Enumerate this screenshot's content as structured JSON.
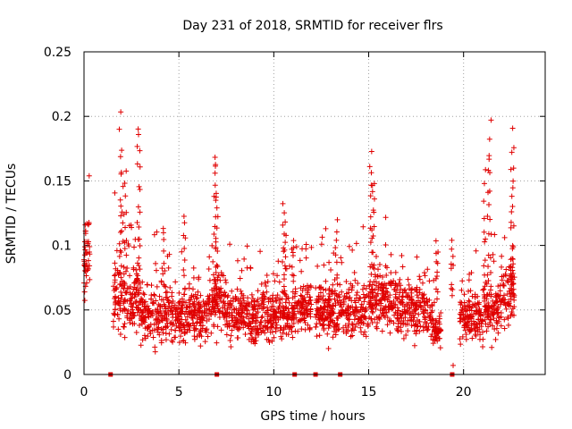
{
  "chart_data": {
    "type": "scatter",
    "title": "Day 231 of 2018, SRMTID for receiver flrs",
    "xlabel": "GPS time / hours",
    "ylabel": "SRMTID / TECUs",
    "xlim": [
      0,
      24.3
    ],
    "ylim": [
      0,
      0.25
    ],
    "x_ticks": [
      0,
      5,
      10,
      15,
      20
    ],
    "x_tick_labels": [
      "0",
      "5",
      "10",
      "15",
      "20"
    ],
    "y_ticks": [
      0,
      0.05,
      0.1,
      0.15,
      0.2,
      0.25
    ],
    "y_tick_labels": [
      "0",
      "0.05",
      "0.1",
      "0.15",
      "0.2",
      "0.25"
    ],
    "grid": true,
    "marker": "+",
    "color": "#e00000",
    "series": [
      {
        "name": "SRMTID",
        "baseline_windows": [
          {
            "x_start": 0.0,
            "x_end": 0.3,
            "level": 0.09,
            "spread": 0.018
          },
          {
            "x_start": 1.5,
            "x_end": 3.0,
            "level": 0.06,
            "spread": 0.02
          },
          {
            "x_start": 3.0,
            "x_end": 6.5,
            "level": 0.045,
            "spread": 0.014
          },
          {
            "x_start": 6.5,
            "x_end": 7.5,
            "level": 0.055,
            "spread": 0.015
          },
          {
            "x_start": 7.5,
            "x_end": 11.0,
            "level": 0.045,
            "spread": 0.014
          },
          {
            "x_start": 11.0,
            "x_end": 12.0,
            "level": 0.052,
            "spread": 0.013
          },
          {
            "x_start": 12.2,
            "x_end": 15.0,
            "level": 0.05,
            "spread": 0.015
          },
          {
            "x_start": 15.0,
            "x_end": 16.5,
            "level": 0.06,
            "spread": 0.016
          },
          {
            "x_start": 16.5,
            "x_end": 18.2,
            "level": 0.05,
            "spread": 0.015
          },
          {
            "x_start": 18.2,
            "x_end": 18.8,
            "level": 0.035,
            "spread": 0.012
          },
          {
            "x_start": 19.8,
            "x_end": 21.0,
            "level": 0.045,
            "spread": 0.012
          },
          {
            "x_start": 21.0,
            "x_end": 22.0,
            "level": 0.05,
            "spread": 0.015
          },
          {
            "x_start": 22.0,
            "x_end": 22.7,
            "level": 0.065,
            "spread": 0.02
          }
        ],
        "peaks": [
          {
            "x": 0.05,
            "y": 0.115
          },
          {
            "x": 1.9,
            "y": 0.202
          },
          {
            "x": 2.0,
            "y": 0.17
          },
          {
            "x": 2.2,
            "y": 0.16
          },
          {
            "x": 2.85,
            "y": 0.192
          },
          {
            "x": 2.9,
            "y": 0.185
          },
          {
            "x": 4.2,
            "y": 0.113
          },
          {
            "x": 5.3,
            "y": 0.123
          },
          {
            "x": 6.9,
            "y": 0.172
          },
          {
            "x": 6.95,
            "y": 0.165
          },
          {
            "x": 7.0,
            "y": 0.14
          },
          {
            "x": 10.5,
            "y": 0.133
          },
          {
            "x": 10.6,
            "y": 0.115
          },
          {
            "x": 11.0,
            "y": 0.105
          },
          {
            "x": 13.3,
            "y": 0.121
          },
          {
            "x": 15.1,
            "y": 0.176
          },
          {
            "x": 15.2,
            "y": 0.16
          },
          {
            "x": 15.25,
            "y": 0.146
          },
          {
            "x": 18.6,
            "y": 0.1
          },
          {
            "x": 19.4,
            "y": 0.101
          },
          {
            "x": 21.3,
            "y": 0.168
          },
          {
            "x": 21.4,
            "y": 0.201
          },
          {
            "x": 21.1,
            "y": 0.155
          },
          {
            "x": 22.6,
            "y": 0.187
          },
          {
            "x": 22.55,
            "y": 0.174
          }
        ],
        "zero_points": [
          1.4,
          7.0,
          11.1,
          12.2,
          13.5,
          19.4
        ],
        "isolated_points": [
          {
            "x": 19.45,
            "y": 0.007
          }
        ]
      }
    ]
  }
}
